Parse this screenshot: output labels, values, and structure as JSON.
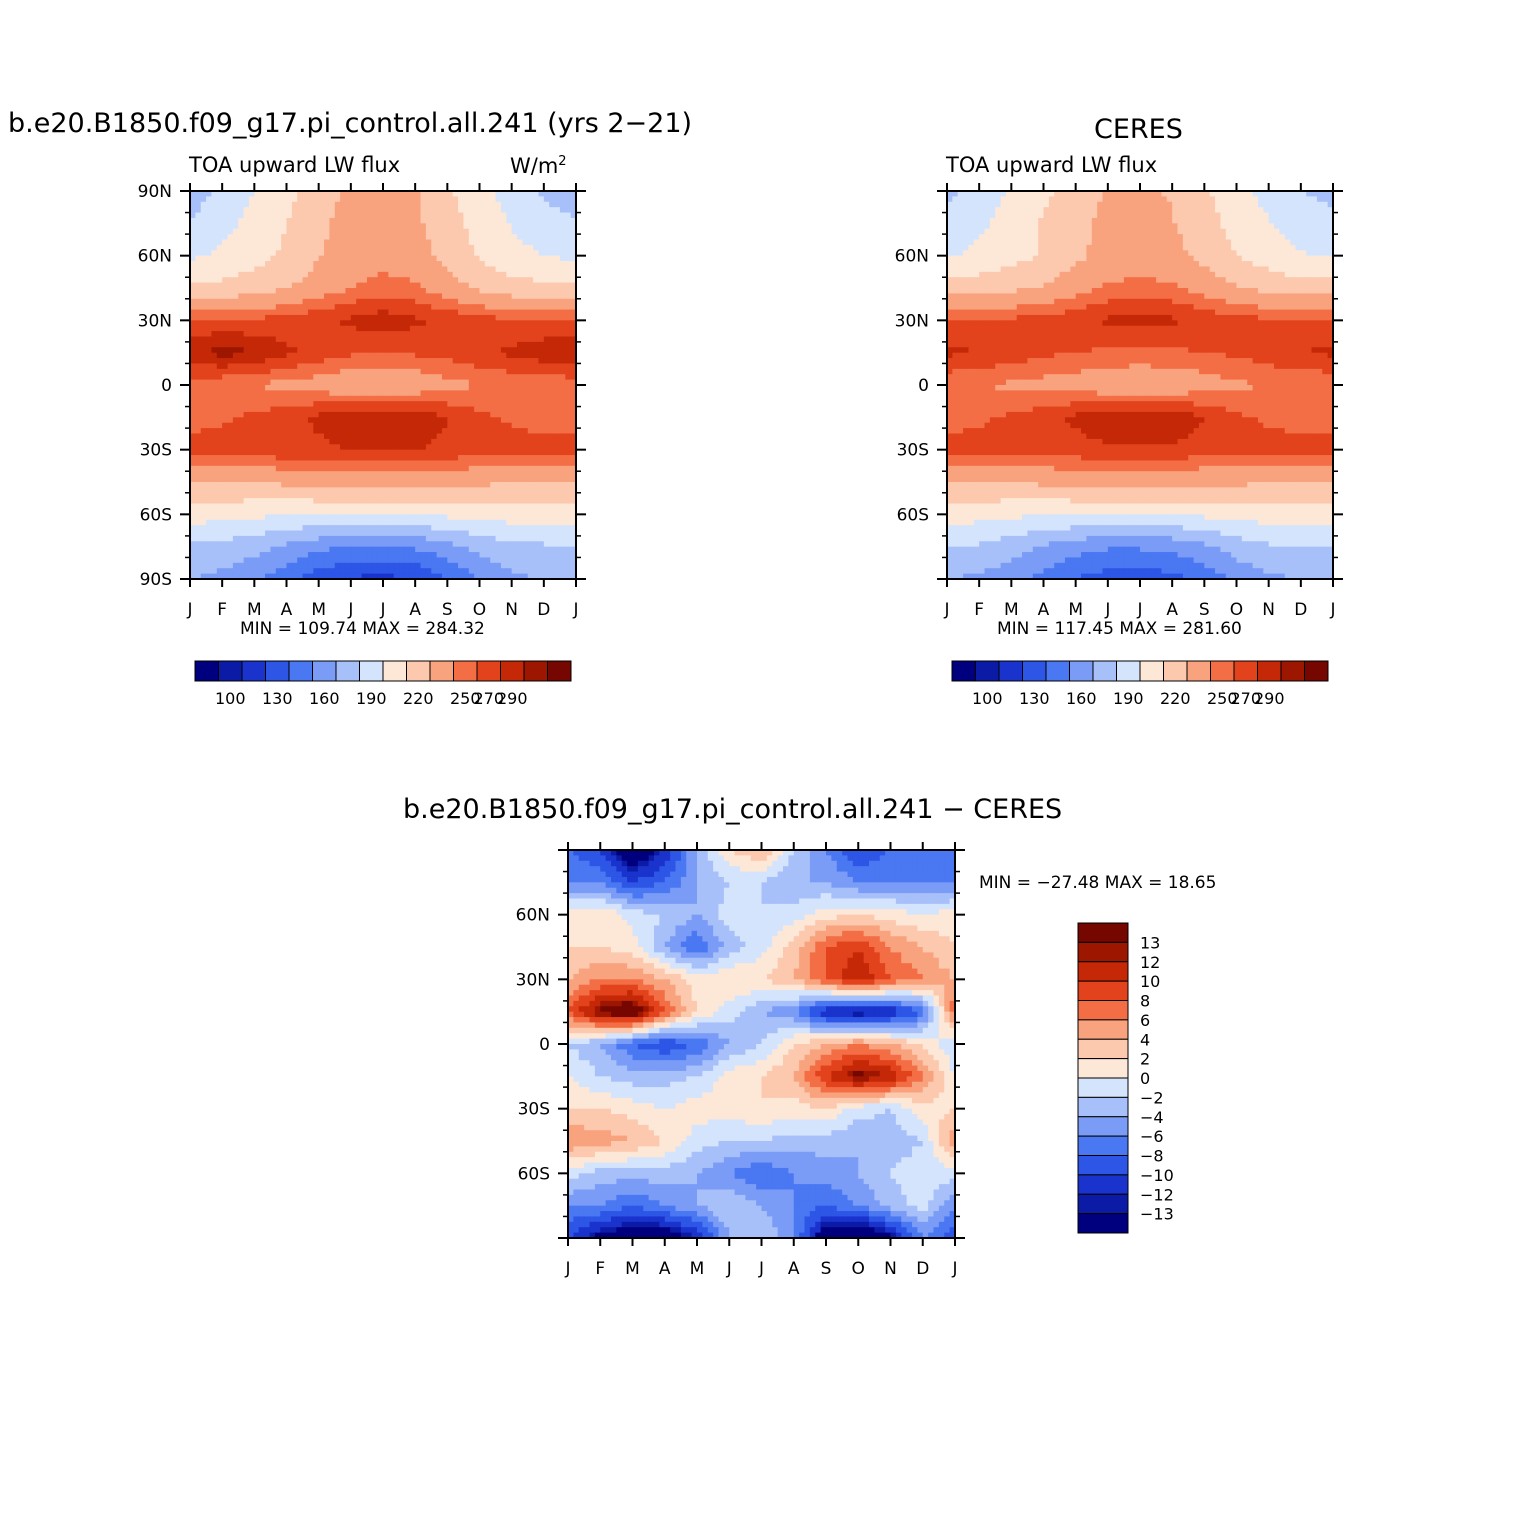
{
  "chart_data": [
    {
      "type": "heatmap",
      "title": "b.e20.B1850.f09_g17.pi_control.all.241 (yrs 2−21)",
      "left_label": "TOA upward LW flux",
      "units": "W/m",
      "units_sup": "2",
      "x_ticks": [
        "J",
        "F",
        "M",
        "A",
        "M",
        "J",
        "J",
        "A",
        "S",
        "O",
        "N",
        "D",
        "J"
      ],
      "y_ticks": [
        "90N",
        "60N",
        "30N",
        "0",
        "30S",
        "60S",
        "90S"
      ],
      "min_label": "MIN =  109.74",
      "max_label": "MAX =  284.32",
      "colorbar_labels": [
        "100",
        "130",
        "160",
        "190",
        "220",
        "250",
        "270",
        "290"
      ],
      "approx_grid": {
        "rows_lat": [
          90,
          75,
          60,
          45,
          30,
          15,
          0,
          -15,
          -30,
          -45,
          -60,
          -75,
          -90
        ],
        "values": [
          [
            180,
            195,
            205,
            215,
            228,
            238,
            238,
            236,
            222,
            210,
            198,
            188,
            182
          ],
          [
            192,
            200,
            210,
            220,
            232,
            240,
            240,
            238,
            226,
            214,
            204,
            195,
            192
          ],
          [
            202,
            208,
            215,
            222,
            234,
            242,
            244,
            242,
            230,
            218,
            210,
            205,
            202
          ],
          [
            222,
            224,
            228,
            234,
            242,
            250,
            255,
            252,
            242,
            232,
            226,
            224,
            222
          ],
          [
            262,
            262,
            262,
            264,
            268,
            272,
            276,
            272,
            268,
            264,
            262,
            262,
            262
          ],
          [
            276,
            284,
            280,
            272,
            266,
            262,
            260,
            262,
            264,
            268,
            272,
            276,
            276
          ],
          [
            255,
            252,
            250,
            246,
            244,
            238,
            236,
            240,
            246,
            250,
            252,
            254,
            255
          ],
          [
            256,
            258,
            262,
            266,
            272,
            278,
            280,
            278,
            270,
            262,
            258,
            256,
            256
          ],
          [
            264,
            266,
            266,
            268,
            268,
            270,
            270,
            270,
            268,
            266,
            265,
            264,
            264
          ],
          [
            236,
            236,
            236,
            238,
            240,
            242,
            242,
            240,
            238,
            238,
            236,
            236,
            236
          ],
          [
            212,
            210,
            208,
            206,
            206,
            206,
            206,
            206,
            208,
            210,
            212,
            212,
            212
          ],
          [
            188,
            186,
            180,
            172,
            164,
            160,
            160,
            162,
            170,
            180,
            186,
            188,
            188
          ],
          [
            176,
            170,
            164,
            150,
            136,
            128,
            126,
            130,
            144,
            160,
            172,
            176,
            176
          ]
        ]
      }
    },
    {
      "type": "heatmap",
      "title": "CERES",
      "left_label": "TOA upward LW flux",
      "x_ticks": [
        "J",
        "F",
        "M",
        "A",
        "M",
        "J",
        "J",
        "A",
        "S",
        "O",
        "N",
        "D",
        "J"
      ],
      "y_ticks": [
        "60N",
        "30N",
        "0",
        "30S",
        "60S"
      ],
      "min_label": "MIN =  117.45",
      "max_label": "MAX =  281.60",
      "colorbar_labels": [
        "100",
        "130",
        "160",
        "190",
        "220",
        "250",
        "270",
        "290"
      ],
      "approx_grid": {
        "rows_lat": [
          90,
          75,
          60,
          45,
          30,
          15,
          0,
          -15,
          -30,
          -45,
          -60,
          -75,
          -90
        ],
        "values": [
          [
            186,
            196,
            206,
            216,
            228,
            236,
            236,
            234,
            222,
            210,
            200,
            190,
            186
          ],
          [
            194,
            202,
            212,
            222,
            232,
            238,
            238,
            236,
            226,
            214,
            206,
            198,
            194
          ],
          [
            204,
            208,
            214,
            222,
            232,
            240,
            242,
            240,
            230,
            220,
            212,
            206,
            204
          ],
          [
            226,
            228,
            232,
            236,
            244,
            252,
            254,
            252,
            244,
            236,
            230,
            226,
            226
          ],
          [
            262,
            262,
            262,
            264,
            268,
            272,
            274,
            272,
            268,
            264,
            262,
            262,
            262
          ],
          [
            272,
            270,
            266,
            262,
            260,
            258,
            258,
            258,
            260,
            262,
            266,
            270,
            272
          ],
          [
            252,
            250,
            248,
            246,
            244,
            240,
            238,
            240,
            244,
            248,
            250,
            252,
            252
          ],
          [
            256,
            258,
            262,
            266,
            272,
            278,
            280,
            278,
            270,
            262,
            258,
            256,
            256
          ],
          [
            264,
            264,
            264,
            266,
            266,
            268,
            268,
            268,
            266,
            265,
            264,
            264,
            264
          ],
          [
            236,
            236,
            236,
            238,
            240,
            242,
            242,
            240,
            238,
            238,
            236,
            236,
            236
          ],
          [
            212,
            210,
            208,
            206,
            206,
            206,
            206,
            206,
            208,
            210,
            212,
            212,
            212
          ],
          [
            190,
            188,
            182,
            174,
            166,
            162,
            162,
            164,
            172,
            182,
            188,
            190,
            190
          ],
          [
            176,
            172,
            166,
            156,
            144,
            138,
            136,
            140,
            150,
            164,
            172,
            176,
            176
          ]
        ]
      }
    },
    {
      "type": "heatmap",
      "title": "b.e20.B1850.f09_g17.pi_control.all.241 − CERES",
      "x_ticks": [
        "J",
        "F",
        "M",
        "A",
        "M",
        "J",
        "J",
        "A",
        "S",
        "O",
        "N",
        "D",
        "J"
      ],
      "y_ticks": [
        "60N",
        "30N",
        "0",
        "30S",
        "60S"
      ],
      "min_label": "MIN = −27.48",
      "max_label": "MAX =   18.65",
      "colorbar_labels": [
        "13",
        "12",
        "10",
        "8",
        "6",
        "4",
        "2",
        "0",
        "−2",
        "−4",
        "−6",
        "−8",
        "−10",
        "−12",
        "−13"
      ],
      "approx_grid": {
        "rows_lat": [
          90,
          75,
          60,
          45,
          30,
          15,
          0,
          -15,
          -30,
          -45,
          -60,
          -75,
          -90
        ],
        "values": [
          [
            -8,
            -10,
            -16,
            -12,
            -4,
            2,
            4,
            -2,
            -6,
            -10,
            -8,
            -6,
            -8
          ],
          [
            -6,
            -6,
            -10,
            -8,
            -4,
            -2,
            -2,
            -4,
            -4,
            -6,
            -6,
            -6,
            -6
          ],
          [
            1,
            2,
            -1,
            -2,
            -4,
            -1,
            -2,
            -1,
            1,
            2,
            1,
            0,
            1
          ],
          [
            2,
            2,
            1,
            -4,
            -8,
            -3,
            -1,
            3,
            8,
            10,
            6,
            4,
            2
          ],
          [
            4,
            6,
            6,
            4,
            1,
            2,
            2,
            4,
            8,
            12,
            8,
            6,
            4
          ],
          [
            8,
            14,
            16,
            8,
            2,
            -1,
            -4,
            -6,
            -12,
            -14,
            -12,
            -8,
            8
          ],
          [
            -2,
            -4,
            -8,
            -10,
            -8,
            -4,
            -2,
            2,
            4,
            6,
            4,
            2,
            -2
          ],
          [
            0,
            -2,
            -3,
            -3,
            -2,
            1,
            2,
            4,
            10,
            14,
            12,
            6,
            0
          ],
          [
            2,
            2,
            1,
            0,
            1,
            1,
            2,
            1,
            2,
            -1,
            -2,
            1,
            2
          ],
          [
            6,
            5,
            4,
            2,
            -1,
            -2,
            -2,
            -3,
            -3,
            -4,
            -3,
            -2,
            6
          ],
          [
            -1,
            -3,
            -3,
            -3,
            -4,
            -6,
            -8,
            -6,
            -5,
            -4,
            -2,
            -1,
            -1
          ],
          [
            -6,
            -6,
            -8,
            -6,
            -4,
            -2,
            -4,
            -6,
            -8,
            -6,
            -3,
            -1,
            -6
          ],
          [
            -10,
            -14,
            -16,
            -16,
            -12,
            -4,
            -2,
            -6,
            -16,
            -18,
            -14,
            -6,
            -10
          ]
        ]
      }
    }
  ],
  "palettes": {
    "abs": [
      "#00007f",
      "#0c1ba6",
      "#1a33cc",
      "#2d55e6",
      "#4a77f2",
      "#7a9cf7",
      "#a7c0fa",
      "#d4e4fc",
      "#fde8d8",
      "#fcc9ae",
      "#f9a37e",
      "#f36e45",
      "#e2421c",
      "#c42806",
      "#9c1600",
      "#760600"
    ],
    "diff": [
      "#760600",
      "#9c1600",
      "#c42806",
      "#e2421c",
      "#f36e45",
      "#f9a37e",
      "#fcc9ae",
      "#fde8d8",
      "#d4e4fc",
      "#a7c0fa",
      "#7a9cf7",
      "#4a77f2",
      "#2d55e6",
      "#1a33cc",
      "#0c1ba6",
      "#00007f"
    ]
  }
}
